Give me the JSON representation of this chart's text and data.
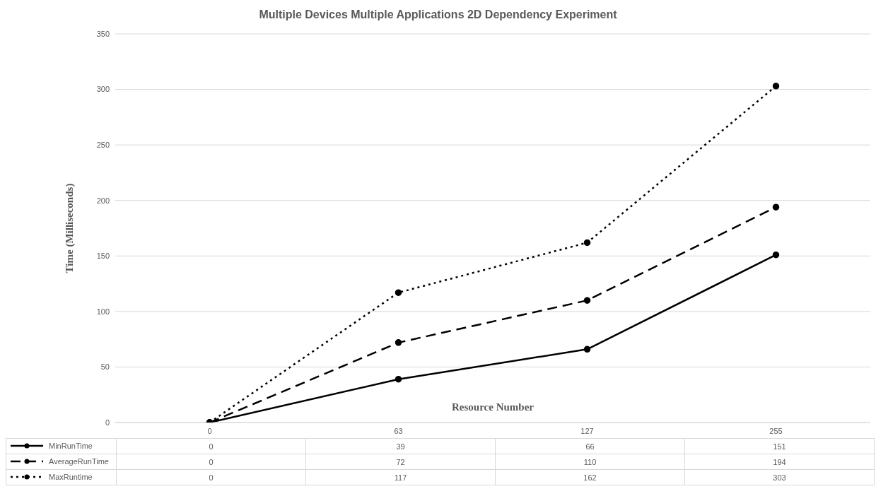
{
  "chart_data": {
    "type": "line",
    "title": "Multiple Devices Multiple Applications 2D Dependency Experiment",
    "xlabel": "Resource Number",
    "ylabel": "Time (Milliseconds)",
    "categories": [
      "0",
      "63",
      "127",
      "255"
    ],
    "series": [
      {
        "name": "MinRunTime",
        "color": "#000000",
        "line_style": "solid",
        "values": [
          0,
          39,
          66,
          151
        ]
      },
      {
        "name": "AverageRunTime",
        "color": "#000000",
        "line_style": "dashed",
        "values": [
          0,
          72,
          110,
          194
        ]
      },
      {
        "name": "MaxRuntime",
        "color": "#000000",
        "line_style": "dotted",
        "values": [
          0,
          117,
          162,
          303
        ]
      }
    ],
    "ylim": [
      0,
      350
    ],
    "yticks": [
      0,
      50,
      100,
      150,
      200,
      250,
      300,
      350
    ],
    "grid": "y",
    "legend": "bottom",
    "marker": "circle",
    "data_labels": true
  }
}
